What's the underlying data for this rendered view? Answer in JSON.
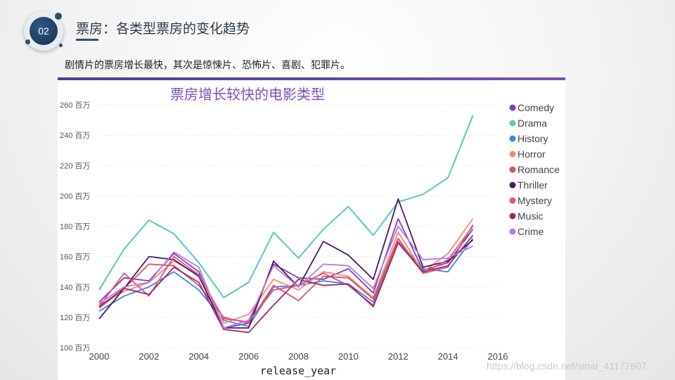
{
  "header": {
    "badge_number": "02",
    "title": "票房：各类型票房的变化趋势",
    "subtitle": "剧情片的票房增长最快，其次是惊悚片、恐怖片、喜剧、犯罪片。"
  },
  "watermark": "https://blog.csdn.net/sinat_41177607",
  "colors": {
    "Comedy": "#7b3fbf",
    "Drama": "#5cc8c0",
    "History": "#3a86e0",
    "Horror": "#f28d6b",
    "Romance": "#e0505a",
    "Thriller": "#4a1a5e",
    "Mystery": "#e0508a",
    "Music": "#9c2a6e",
    "Crime": "#b87ae6"
  },
  "chart_data": {
    "type": "line",
    "title": "票房增长较快的电影类型",
    "xlabel": "release_year",
    "ylabel": "",
    "x": [
      2000,
      2001,
      2002,
      2003,
      2004,
      2005,
      2006,
      2007,
      2008,
      2009,
      2010,
      2011,
      2012,
      2013,
      2014,
      2015
    ],
    "xlim": [
      2000,
      2016
    ],
    "xticks": [
      "2000",
      "2002",
      "2004",
      "2006",
      "2008",
      "2010",
      "2012",
      "2014",
      "2016"
    ],
    "ylim": [
      100,
      260
    ],
    "yticks": [
      "100 百万",
      "120 百万",
      "140 百万",
      "160 百万",
      "180 百万",
      "200 百万",
      "220 百万",
      "240 百万",
      "260 百万"
    ],
    "legend_position": "right",
    "series": [
      {
        "name": "Comedy",
        "values": [
          130,
          146,
          144,
          162,
          150,
          113,
          116,
          155,
          146,
          145,
          152,
          136,
          185,
          151,
          156,
          178
        ]
      },
      {
        "name": "Drama",
        "values": [
          138,
          165,
          184,
          175,
          156,
          133,
          143,
          176,
          159,
          178,
          193,
          174,
          196,
          201,
          212,
          253
        ]
      },
      {
        "name": "History",
        "values": [
          124,
          134,
          140,
          150,
          138,
          118,
          114,
          140,
          141,
          144,
          142,
          130,
          170,
          152,
          150,
          172
        ]
      },
      {
        "name": "Horror",
        "values": [
          128,
          137,
          143,
          157,
          148,
          116,
          122,
          145,
          138,
          150,
          147,
          133,
          176,
          150,
          162,
          185
        ]
      },
      {
        "name": "Romance",
        "values": [
          126,
          139,
          155,
          154,
          141,
          120,
          116,
          141,
          131,
          147,
          146,
          132,
          172,
          149,
          153,
          181
        ]
      },
      {
        "name": "Thriller",
        "values": [
          119,
          139,
          160,
          158,
          147,
          113,
          113,
          157,
          140,
          170,
          161,
          145,
          198,
          153,
          157,
          171
        ]
      },
      {
        "name": "Mystery",
        "values": [
          127,
          149,
          134,
          160,
          148,
          119,
          117,
          138,
          141,
          149,
          141,
          128,
          170,
          149,
          158,
          180
        ]
      },
      {
        "name": "Music",
        "values": [
          127,
          139,
          135,
          153,
          143,
          112,
          110,
          128,
          145,
          141,
          142,
          127,
          169,
          150,
          154,
          174
        ]
      },
      {
        "name": "Crime",
        "values": [
          129,
          140,
          143,
          163,
          153,
          113,
          118,
          154,
          140,
          155,
          154,
          139,
          180,
          158,
          159,
          167
        ]
      }
    ]
  }
}
